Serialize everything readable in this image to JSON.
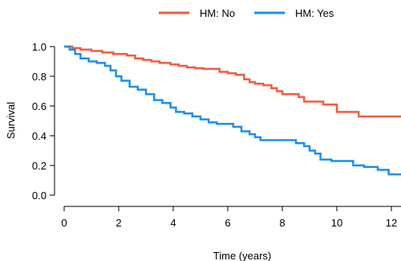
{
  "chart_data": {
    "type": "line",
    "xlabel": "Time (years)",
    "ylabel": "Survival",
    "xlim": [
      0,
      12
    ],
    "ylim": [
      0,
      1
    ],
    "x_ticks": [
      0,
      2,
      4,
      6,
      8,
      10,
      12
    ],
    "y_ticks": [
      0.0,
      0.2,
      0.4,
      0.6,
      0.8,
      1.0
    ],
    "x_tick_labels": [
      "0",
      "2",
      "4",
      "6",
      "8",
      "10",
      "12"
    ],
    "y_tick_labels": [
      "0.0",
      "0.2",
      "0.4",
      "0.6",
      "0.8",
      "1.0"
    ],
    "grid": false,
    "legend_position": "top",
    "step": true,
    "series": [
      {
        "name": "HM: No",
        "color": "#F45B3F",
        "points": [
          [
            0,
            1.0
          ],
          [
            0.3,
            0.99
          ],
          [
            0.6,
            0.98
          ],
          [
            1.0,
            0.97
          ],
          [
            1.4,
            0.96
          ],
          [
            1.8,
            0.95
          ],
          [
            2.3,
            0.94
          ],
          [
            2.6,
            0.92
          ],
          [
            2.9,
            0.91
          ],
          [
            3.2,
            0.9
          ],
          [
            3.5,
            0.89
          ],
          [
            3.9,
            0.88
          ],
          [
            4.2,
            0.87
          ],
          [
            4.5,
            0.86
          ],
          [
            4.8,
            0.855
          ],
          [
            5.1,
            0.85
          ],
          [
            5.5,
            0.85
          ],
          [
            5.7,
            0.83
          ],
          [
            6.0,
            0.82
          ],
          [
            6.3,
            0.81
          ],
          [
            6.6,
            0.78
          ],
          [
            6.8,
            0.76
          ],
          [
            7.0,
            0.75
          ],
          [
            7.3,
            0.74
          ],
          [
            7.6,
            0.72
          ],
          [
            7.8,
            0.7
          ],
          [
            8.0,
            0.68
          ],
          [
            8.3,
            0.68
          ],
          [
            8.6,
            0.66
          ],
          [
            8.8,
            0.63
          ],
          [
            9.3,
            0.63
          ],
          [
            9.5,
            0.61
          ],
          [
            9.8,
            0.61
          ],
          [
            10.0,
            0.56
          ],
          [
            10.6,
            0.56
          ],
          [
            10.8,
            0.53
          ],
          [
            11.2,
            0.53
          ],
          [
            12.0,
            0.53
          ],
          [
            12.5,
            0.53
          ]
        ]
      },
      {
        "name": "HM: Yes",
        "color": "#1C8FE9",
        "points": [
          [
            0,
            1.0
          ],
          [
            0.2,
            0.98
          ],
          [
            0.4,
            0.95
          ],
          [
            0.6,
            0.92
          ],
          [
            0.9,
            0.9
          ],
          [
            1.2,
            0.89
          ],
          [
            1.5,
            0.87
          ],
          [
            1.7,
            0.84
          ],
          [
            1.9,
            0.8
          ],
          [
            2.1,
            0.77
          ],
          [
            2.4,
            0.73
          ],
          [
            2.7,
            0.71
          ],
          [
            3.0,
            0.68
          ],
          [
            3.3,
            0.64
          ],
          [
            3.6,
            0.62
          ],
          [
            3.9,
            0.59
          ],
          [
            4.1,
            0.56
          ],
          [
            4.4,
            0.55
          ],
          [
            4.7,
            0.53
          ],
          [
            5.0,
            0.51
          ],
          [
            5.3,
            0.49
          ],
          [
            5.6,
            0.48
          ],
          [
            5.9,
            0.48
          ],
          [
            6.2,
            0.46
          ],
          [
            6.5,
            0.43
          ],
          [
            6.8,
            0.41
          ],
          [
            7.0,
            0.39
          ],
          [
            7.2,
            0.37
          ],
          [
            7.5,
            0.37
          ],
          [
            8.0,
            0.37
          ],
          [
            8.5,
            0.35
          ],
          [
            8.8,
            0.33
          ],
          [
            9.0,
            0.3
          ],
          [
            9.2,
            0.28
          ],
          [
            9.4,
            0.24
          ],
          [
            9.8,
            0.23
          ],
          [
            10.2,
            0.23
          ],
          [
            10.6,
            0.2
          ],
          [
            11.0,
            0.19
          ],
          [
            11.5,
            0.17
          ],
          [
            11.9,
            0.14
          ],
          [
            12.2,
            0.14
          ],
          [
            12.5,
            0.14
          ]
        ]
      }
    ]
  }
}
